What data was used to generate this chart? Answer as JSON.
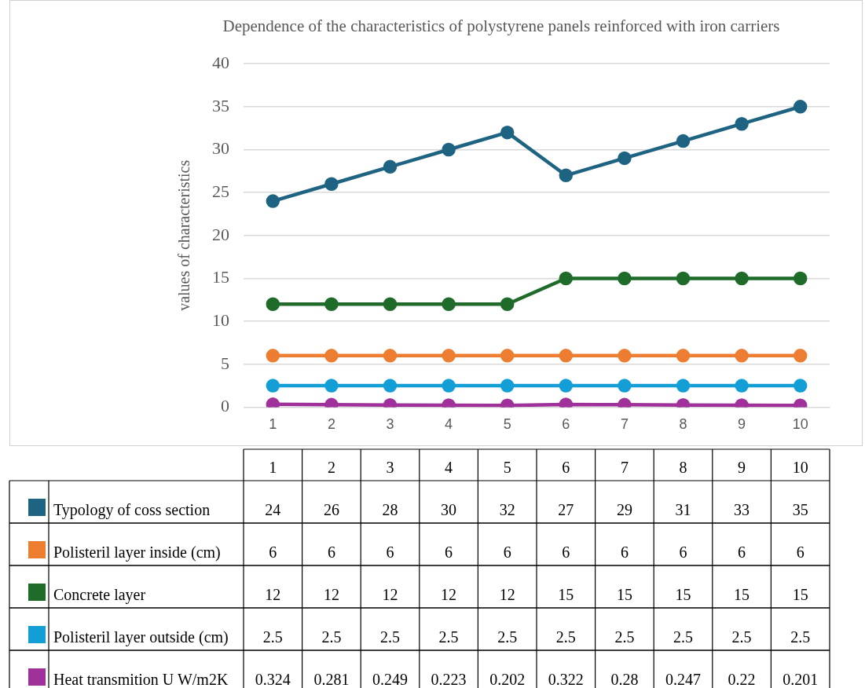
{
  "chart_data": {
    "type": "line",
    "title": "Dependence of the characteristics of polystyrene panels reinforced with iron carriers",
    "ylabel": "values of characteristics",
    "categories": [
      "1",
      "2",
      "3",
      "4",
      "5",
      "6",
      "7",
      "8",
      "9",
      "10"
    ],
    "series": [
      {
        "name": "Typology of coss section",
        "color": "#1f6383",
        "values": [
          24,
          26,
          28,
          30,
          32,
          27,
          29,
          31,
          33,
          35
        ]
      },
      {
        "name": "Polisteril layer inside (cm)",
        "color": "#ed7d31",
        "values": [
          6,
          6,
          6,
          6,
          6,
          6,
          6,
          6,
          6,
          6
        ]
      },
      {
        "name": "Concrete layer",
        "color": "#1e6b2a",
        "values": [
          12,
          12,
          12,
          12,
          12,
          15,
          15,
          15,
          15,
          15
        ]
      },
      {
        "name": "Polisteril layer outside (cm)",
        "color": "#139ed6",
        "values": [
          2.5,
          2.5,
          2.5,
          2.5,
          2.5,
          2.5,
          2.5,
          2.5,
          2.5,
          2.5
        ]
      },
      {
        "name": "Heat transmition U W/m2K",
        "color": "#a0309a",
        "values": [
          0.324,
          0.281,
          0.249,
          0.223,
          0.202,
          0.322,
          0.28,
          0.247,
          0.22,
          0.201
        ]
      }
    ],
    "ylim": [
      0,
      40
    ],
    "yticks": [
      0,
      5,
      10,
      15,
      20,
      25,
      30,
      35,
      40
    ],
    "grid": "y",
    "legend": "bottom left",
    "marker": "circle",
    "line_style": "solid",
    "data_labels": true
  }
}
